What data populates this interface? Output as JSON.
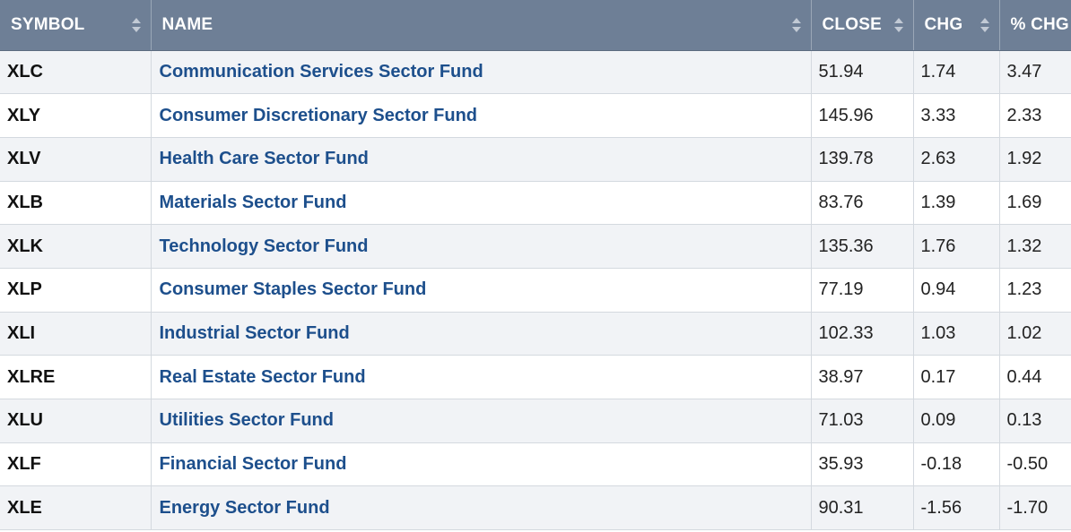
{
  "table": {
    "headers": {
      "symbol": "SYMBOL",
      "name": "NAME",
      "close": "CLOSE",
      "chg": "CHG",
      "pct_chg": "% CHG"
    },
    "sortable_columns": [
      "symbol",
      "name",
      "close",
      "chg"
    ],
    "colors": {
      "header_bg": "#6e7f96",
      "header_text": "#ffffff",
      "link": "#1d4f8c",
      "row_alt": "#f1f3f6"
    },
    "rows": [
      {
        "symbol": "XLC",
        "name": "Communication Services Sector Fund",
        "close": "51.94",
        "chg": "1.74",
        "pct_chg": "3.47"
      },
      {
        "symbol": "XLY",
        "name": "Consumer Discretionary Sector Fund",
        "close": "145.96",
        "chg": "3.33",
        "pct_chg": "2.33"
      },
      {
        "symbol": "XLV",
        "name": "Health Care Sector Fund",
        "close": "139.78",
        "chg": "2.63",
        "pct_chg": "1.92"
      },
      {
        "symbol": "XLB",
        "name": "Materials Sector Fund",
        "close": "83.76",
        "chg": "1.39",
        "pct_chg": "1.69"
      },
      {
        "symbol": "XLK",
        "name": "Technology Sector Fund",
        "close": "135.36",
        "chg": "1.76",
        "pct_chg": "1.32"
      },
      {
        "symbol": "XLP",
        "name": "Consumer Staples Sector Fund",
        "close": "77.19",
        "chg": "0.94",
        "pct_chg": "1.23"
      },
      {
        "symbol": "XLI",
        "name": "Industrial Sector Fund",
        "close": "102.33",
        "chg": "1.03",
        "pct_chg": "1.02"
      },
      {
        "symbol": "XLRE",
        "name": "Real Estate Sector Fund",
        "close": "38.97",
        "chg": "0.17",
        "pct_chg": "0.44"
      },
      {
        "symbol": "XLU",
        "name": "Utilities Sector Fund",
        "close": "71.03",
        "chg": "0.09",
        "pct_chg": "0.13"
      },
      {
        "symbol": "XLF",
        "name": "Financial Sector Fund",
        "close": "35.93",
        "chg": "-0.18",
        "pct_chg": "-0.50"
      },
      {
        "symbol": "XLE",
        "name": "Energy Sector Fund",
        "close": "90.31",
        "chg": "-1.56",
        "pct_chg": "-1.70"
      }
    ]
  }
}
